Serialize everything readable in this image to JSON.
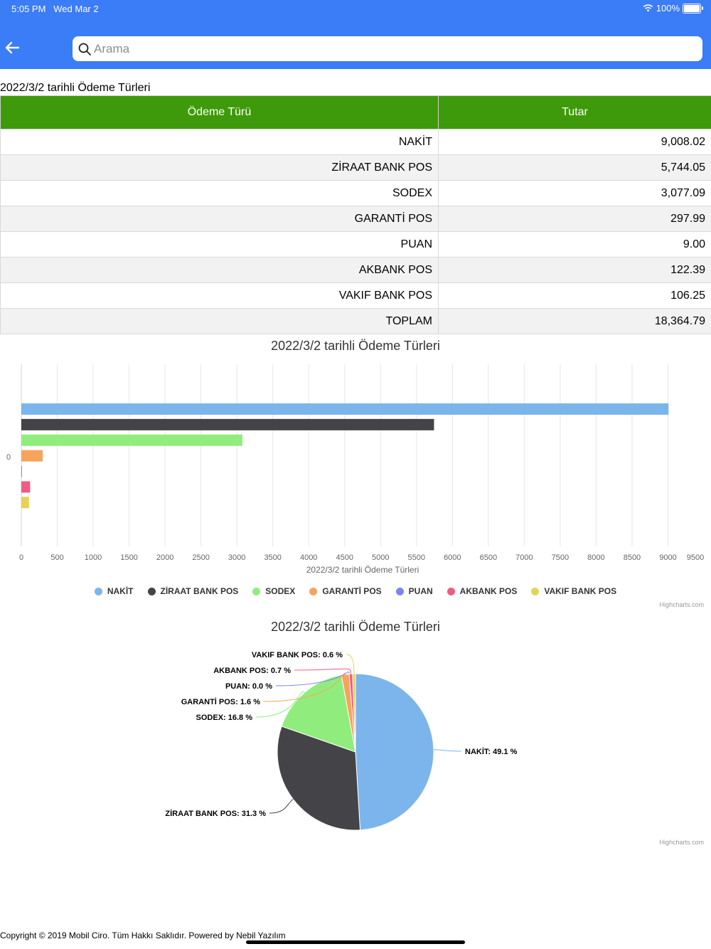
{
  "status_bar": {
    "time": "5:05 PM",
    "date": "Wed Mar 2",
    "battery": "100%"
  },
  "search": {
    "placeholder": "Arama"
  },
  "section_title": "2022/3/2 tarihli Ödeme Türleri",
  "table": {
    "headers": [
      "Ödeme Türü",
      "Tutar"
    ],
    "rows": [
      {
        "type": "NAKİT",
        "amount": "9,008.02"
      },
      {
        "type": "ZİRAAT BANK POS",
        "amount": "5,744.05"
      },
      {
        "type": "SODEX",
        "amount": "3,077.09"
      },
      {
        "type": "GARANTİ POS",
        "amount": "297.99"
      },
      {
        "type": "PUAN",
        "amount": "9.00"
      },
      {
        "type": "AKBANK POS",
        "amount": "122.39"
      },
      {
        "type": "VAKIF BANK POS",
        "amount": "106.25"
      },
      {
        "type": "TOPLAM",
        "amount": "18,364.79"
      }
    ]
  },
  "chart_data": [
    {
      "type": "bar",
      "orientation": "horizontal",
      "title": "2022/3/2 tarihli Ödeme Türleri",
      "categories": [
        "0"
      ],
      "series": [
        {
          "name": "NAKİT",
          "values": [
            9008.02
          ],
          "color": "#7cb5ec"
        },
        {
          "name": "ZİRAAT BANK POS",
          "values": [
            5744.05
          ],
          "color": "#434348"
        },
        {
          "name": "SODEX",
          "values": [
            3077.09
          ],
          "color": "#90ed7d"
        },
        {
          "name": "GARANTİ POS",
          "values": [
            297.99
          ],
          "color": "#f7a35c"
        },
        {
          "name": "PUAN",
          "values": [
            9.0
          ],
          "color": "#8085e9"
        },
        {
          "name": "AKBANK POS",
          "values": [
            122.39
          ],
          "color": "#f15c80"
        },
        {
          "name": "VAKIF BANK POS",
          "values": [
            106.25
          ],
          "color": "#e4d354"
        }
      ],
      "xlabel": "2022/3/2 tarihli Ödeme Türleri",
      "ylabel": "",
      "xlim": [
        0,
        9500
      ],
      "ticks": [
        "0",
        "500",
        "1000",
        "1500",
        "2000",
        "2500",
        "3000",
        "3500",
        "4000",
        "4500",
        "5000",
        "5500",
        "6000",
        "6500",
        "7000",
        "7500",
        "8000",
        "8500",
        "9000",
        "9500"
      ],
      "legend": "bottom",
      "grid": true,
      "credits": "Highcharts.com"
    },
    {
      "type": "pie",
      "title": "2022/3/2 tarihli Ödeme Türleri",
      "slices": [
        {
          "name": "NAKİT",
          "value": 49.1,
          "label": "NAKİT: 49.1 %",
          "color": "#7cb5ec"
        },
        {
          "name": "ZİRAAT BANK POS",
          "value": 31.3,
          "label": "ZİRAAT BANK POS: 31.3 %",
          "color": "#434348"
        },
        {
          "name": "SODEX",
          "value": 16.8,
          "label": "SODEX: 16.8 %",
          "color": "#90ed7d"
        },
        {
          "name": "GARANTİ POS",
          "value": 1.6,
          "label": "GARANTİ POS: 1.6 %",
          "color": "#f7a35c"
        },
        {
          "name": "PUAN",
          "value": 0.0,
          "label": "PUAN: 0.0 %",
          "color": "#8085e9"
        },
        {
          "name": "AKBANK POS",
          "value": 0.7,
          "label": "AKBANK POS: 0.7 %",
          "color": "#f15c80"
        },
        {
          "name": "VAKIF BANK POS",
          "value": 0.6,
          "label": "VAKIF BANK POS: 0.6 %",
          "color": "#e4d354"
        }
      ],
      "credits": "Highcharts.com"
    }
  ],
  "footer": "Copyright © 2019 Mobil Ciro. Tüm Hakkı Saklıdır. Powered by Nebil Yazılım"
}
